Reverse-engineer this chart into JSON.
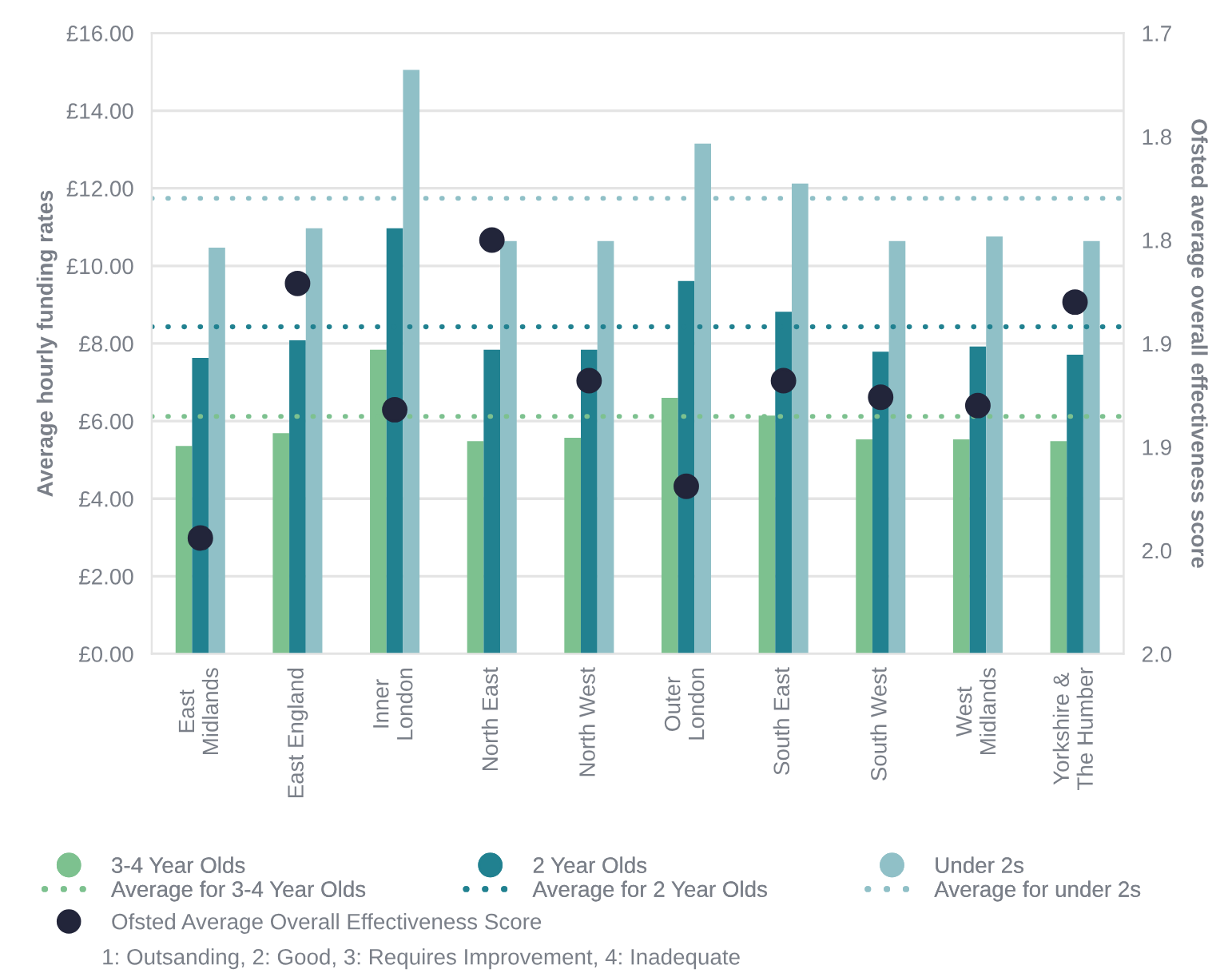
{
  "chart_data": {
    "type": "bar",
    "categories": [
      "East\nMidlands",
      "East England",
      "Inner\nLondon",
      "North East",
      "North West",
      "Outer\nLondon",
      "South East",
      "South West",
      "West\nMidlands",
      "Yorkshire &\nThe Humber"
    ],
    "ylabel": "Average hourly funding rates",
    "y2label": "Ofsted average overall effectiveness score",
    "series": [
      {
        "name": "3-4 Year Olds",
        "color": "#7dc18f",
        "values": [
          5.36,
          5.69,
          7.84,
          5.48,
          5.57,
          6.6,
          6.14,
          5.53,
          5.53,
          5.48
        ]
      },
      {
        "name": "2 Year Olds",
        "color": "#218190",
        "values": [
          7.63,
          8.08,
          10.97,
          7.84,
          7.84,
          9.61,
          8.82,
          7.79,
          7.92,
          7.71
        ]
      },
      {
        "name": "Under 2s",
        "color": "#90c0c7",
        "values": [
          10.47,
          10.97,
          15.05,
          10.64,
          10.64,
          13.15,
          12.12,
          10.64,
          10.76,
          10.64
        ]
      },
      {
        "name": "Ofsted Average Overall Effectiveness Score",
        "type": "scatter",
        "axis": "y2",
        "marker": "circle",
        "color": "#22253a",
        "values": [
          1.944,
          1.821,
          1.882,
          1.8,
          1.868,
          1.919,
          1.868,
          1.876,
          1.88,
          1.83
        ]
      }
    ],
    "ref_lines": [
      {
        "axis": "y",
        "value": 6.12,
        "label": "Average for 3-4 Year Olds",
        "color": "#7dc18f",
        "line_style": "dotted"
      },
      {
        "axis": "y",
        "value": 8.43,
        "label": "Average for 2 Year Olds",
        "color": "#218190",
        "line_style": "dotted"
      },
      {
        "axis": "y",
        "value": 11.74,
        "label": "Average for under 2s",
        "color": "#90c0c7",
        "line_style": "dotted"
      }
    ],
    "ylim": [
      0,
      16
    ],
    "yticks": [
      {
        "value": 0,
        "label": "£0.00"
      },
      {
        "value": 2,
        "label": "£2.00"
      },
      {
        "value": 4,
        "label": "£4.00"
      },
      {
        "value": 6,
        "label": "£6.00"
      },
      {
        "value": 8,
        "label": "£8.00"
      },
      {
        "value": 10,
        "label": "£10.00"
      },
      {
        "value": 12,
        "label": "£12.00"
      },
      {
        "value": 14,
        "label": "£14.00"
      },
      {
        "value": 16,
        "label": "£16.00"
      }
    ],
    "y2lim": [
      2.0,
      1.7
    ],
    "y2ticks": [
      {
        "value": 1.7,
        "label": "1.7"
      },
      {
        "value": 1.75,
        "label": "1.8"
      },
      {
        "value": 1.8,
        "label": "1.8"
      },
      {
        "value": 1.85,
        "label": "1.9"
      },
      {
        "value": 1.9,
        "label": "1.9"
      },
      {
        "value": 1.95,
        "label": "2.0"
      },
      {
        "value": 2.0,
        "label": "2.0"
      }
    ],
    "grid": "y",
    "legend": "bottom",
    "annotations": [
      "1: Outsanding, 2: Good, 3: Requires Improvement, 4: Inadequate"
    ]
  }
}
